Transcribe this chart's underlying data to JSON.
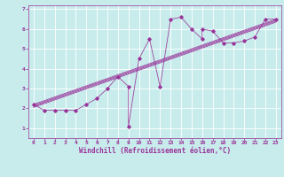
{
  "xlabel": "Windchill (Refroidissement éolien,°C)",
  "ylabel": "",
  "xlim": [
    -0.5,
    23.5
  ],
  "ylim": [
    0.5,
    7.2
  ],
  "xticks": [
    0,
    1,
    2,
    3,
    4,
    5,
    6,
    7,
    8,
    9,
    10,
    11,
    12,
    13,
    14,
    15,
    16,
    17,
    18,
    19,
    20,
    21,
    22,
    23
  ],
  "yticks": [
    1,
    2,
    3,
    4,
    5,
    6,
    7
  ],
  "background_color": "#c8ecec",
  "grid_color": "#ffffff",
  "line_color": "#993399",
  "scatter_x": [
    0,
    1,
    2,
    3,
    4,
    5,
    6,
    7,
    8,
    9,
    9,
    10,
    11,
    12,
    13,
    14,
    15,
    16,
    16,
    17,
    18,
    19,
    20,
    21,
    22,
    23
  ],
  "scatter_y": [
    2.2,
    1.9,
    1.9,
    1.9,
    1.9,
    2.2,
    2.5,
    3.0,
    3.6,
    3.1,
    1.1,
    4.5,
    5.5,
    3.1,
    6.5,
    6.6,
    6.0,
    5.5,
    6.0,
    5.9,
    5.3,
    5.3,
    5.4,
    5.6,
    6.5,
    6.5
  ],
  "regression_lines": [
    {
      "x": [
        0,
        23
      ],
      "y": [
        2.05,
        6.35
      ]
    },
    {
      "x": [
        0,
        23
      ],
      "y": [
        2.1,
        6.4
      ]
    },
    {
      "x": [
        0,
        23
      ],
      "y": [
        2.15,
        6.45
      ]
    },
    {
      "x": [
        0,
        23
      ],
      "y": [
        2.2,
        6.5
      ]
    }
  ],
  "figsize": [
    3.2,
    2.0
  ],
  "dpi": 100,
  "xlabel_fontsize": 5.5,
  "tick_fontsize": 4.5
}
